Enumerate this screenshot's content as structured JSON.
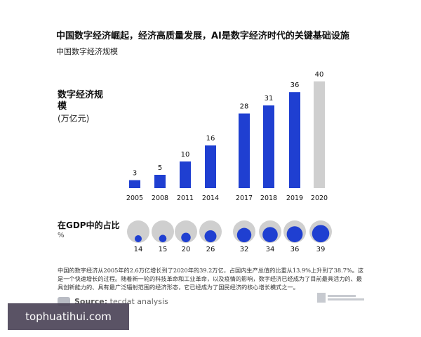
{
  "title": "中国数字经济崛起，经济高质量发展，AI是数字经济时代的关键基础设施",
  "subtitle": "中国数字经济规模",
  "colors": {
    "bar": "#1f3fd1",
    "bar_forecast": "#cfcfcf",
    "bubble_bg": "#cfcfcf",
    "bubble_fg": "#1f3fd1"
  },
  "chart_data": [
    {
      "type": "bar",
      "title": "中国数字经济规模",
      "ylabel": "数字经济规模",
      "yunit": "(万亿元)",
      "categories": [
        "2005",
        "2008",
        "2011",
        "2014",
        "2017",
        "2018",
        "2019",
        "2020"
      ],
      "values": [
        3,
        5,
        10,
        16,
        28,
        31,
        36,
        40
      ],
      "forecast_index": 7,
      "ylim": [
        0,
        40
      ],
      "grid": false
    },
    {
      "type": "bubble",
      "title": "在GDP中的占比",
      "unit": "%",
      "categories": [
        "2005",
        "2008",
        "2011",
        "2014",
        "2017",
        "2018",
        "2019",
        "2020"
      ],
      "values": [
        14,
        15,
        20,
        26,
        32,
        34,
        36,
        39
      ]
    }
  ],
  "description": "中国的数字经济从2005年的2.6万亿增长到了2020年的39.2万亿，占国内生产总值的比重从13.9%上升到了38.7%。这是一个快速增长的过程。随着新一轮的科技革命和工业革命，以及疫情的影响，数字经济已经成为了目前最具活力的、最具创新能力的、具有最广泛辐射范围的经济形态，它已经成为了国民经济的核心增长模式之一。",
  "source": {
    "prefix": "Source:",
    "text": "tecdat analysis"
  },
  "watermark": "tophuatihui.com"
}
